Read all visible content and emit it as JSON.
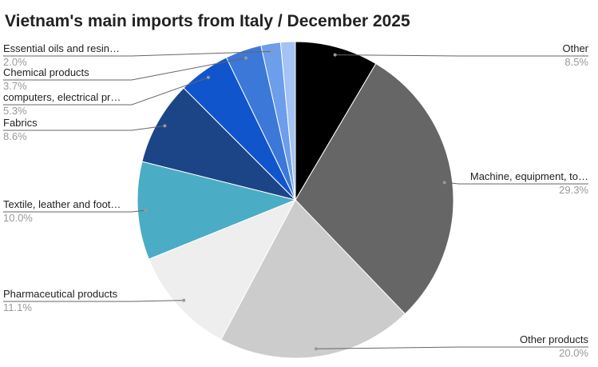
{
  "chart_data": {
    "type": "pie",
    "title": "Vietnam's main imports from Italy / December 2025",
    "categories": [
      "Other",
      "Machine, equipment, to…",
      "Other products",
      "Pharmaceutical products",
      "Textile, leather and foot…",
      "Fabrics",
      "computers, electrical pr…",
      "Chemical products",
      "Essential oils and resin…",
      null
    ],
    "values": [
      8.5,
      29.3,
      20.0,
      11.1,
      10.0,
      8.6,
      5.3,
      3.7,
      2.0,
      1.5
    ],
    "value_labels": [
      "8.5%",
      "29.3%",
      "20.0%",
      "11.1%",
      "10.0%",
      "8.6%",
      "5.3%",
      "3.7%",
      "2.0%",
      null
    ],
    "colors": [
      "#000000",
      "#666666",
      "#cccccc",
      "#eeeeee",
      "#4bacc6",
      "#1c4587",
      "#1155cc",
      "#3c78d8",
      "#6d9eeb",
      "#a4c2f4"
    ]
  }
}
